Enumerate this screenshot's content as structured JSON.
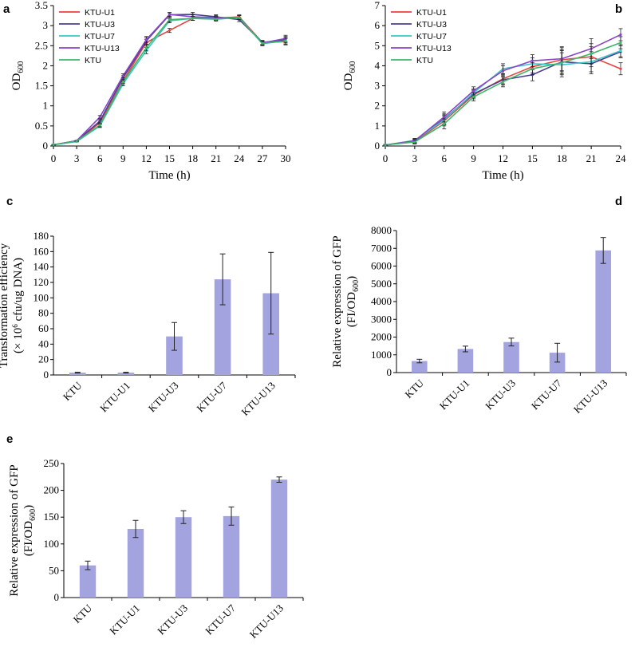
{
  "colors": {
    "KTU-U1": "#e8423f",
    "KTU-U3": "#4a3f8f",
    "KTU-U7": "#3cc6c4",
    "KTU-U13": "#8a43c6",
    "KTU": "#3fb56a",
    "bar": "#a3a3e0",
    "error": "#222222"
  },
  "chart_data": [
    {
      "panel": "a",
      "type": "line",
      "x": [
        0,
        3,
        6,
        9,
        12,
        15,
        18,
        21,
        24,
        27,
        30
      ],
      "xticks": [
        "0",
        "3",
        "6",
        "9",
        "12",
        "15",
        "18",
        "21",
        "24",
        "27",
        "30"
      ],
      "yticks": [
        "0",
        "0.5",
        "1",
        "1.5",
        "2",
        "2.5",
        "3",
        "3.5"
      ],
      "xlabel": "Time (h)",
      "ylabel_main": "OD",
      "ylabel_sub": "600",
      "xlim": [
        0,
        30
      ],
      "ylim": [
        0,
        3.5
      ],
      "legend": "top-left",
      "series": [
        {
          "name": "KTU-U1",
          "values": [
            0.03,
            0.12,
            0.58,
            1.62,
            2.58,
            2.88,
            3.18,
            3.18,
            3.22,
            2.58,
            2.6
          ],
          "errors": [
            0.01,
            0.01,
            0.04,
            0.05,
            0.08,
            0.05,
            0.05,
            0.05,
            0.05,
            0.05,
            0.08
          ]
        },
        {
          "name": "KTU-U3",
          "values": [
            0.03,
            0.13,
            0.62,
            1.7,
            2.62,
            3.27,
            3.28,
            3.22,
            3.15,
            2.58,
            2.65
          ],
          "errors": [
            0.01,
            0.01,
            0.04,
            0.05,
            0.08,
            0.05,
            0.05,
            0.05,
            0.05,
            0.05,
            0.08
          ]
        },
        {
          "name": "KTU-U7",
          "values": [
            0.03,
            0.11,
            0.5,
            1.55,
            2.38,
            3.12,
            3.18,
            3.18,
            3.2,
            2.55,
            2.62
          ],
          "errors": [
            0.01,
            0.01,
            0.04,
            0.05,
            0.08,
            0.05,
            0.05,
            0.05,
            0.05,
            0.05,
            0.08
          ]
        },
        {
          "name": "KTU-U13",
          "values": [
            0.03,
            0.13,
            0.72,
            1.75,
            2.65,
            3.28,
            3.22,
            3.2,
            3.2,
            2.57,
            2.68
          ],
          "errors": [
            0.01,
            0.01,
            0.04,
            0.05,
            0.08,
            0.05,
            0.05,
            0.05,
            0.05,
            0.05,
            0.08
          ]
        },
        {
          "name": "KTU",
          "values": [
            0.03,
            0.12,
            0.52,
            1.6,
            2.45,
            3.15,
            3.18,
            3.16,
            3.2,
            2.56,
            2.62
          ],
          "errors": [
            0.01,
            0.01,
            0.04,
            0.05,
            0.08,
            0.05,
            0.05,
            0.05,
            0.05,
            0.05,
            0.08
          ]
        }
      ]
    },
    {
      "panel": "b",
      "type": "line",
      "x": [
        0,
        3,
        6,
        9,
        12,
        15,
        18,
        21,
        24
      ],
      "xticks": [
        "0",
        "3",
        "6",
        "9",
        "12",
        "15",
        "18",
        "21",
        "24"
      ],
      "yticks": [
        "0",
        "1",
        "2",
        "3",
        "4",
        "5",
        "6",
        "7"
      ],
      "xlabel": "Time (h)",
      "ylabel_main": "OD",
      "ylabel_sub": "600",
      "xlim": [
        0,
        24
      ],
      "ylim": [
        0,
        7
      ],
      "legend": "top-left",
      "series": [
        {
          "name": "KTU-U1",
          "values": [
            0.05,
            0.22,
            1.25,
            2.55,
            3.35,
            3.95,
            4.3,
            4.45,
            3.85
          ],
          "errors": [
            0.02,
            0.1,
            0.25,
            0.2,
            0.25,
            0.3,
            0.6,
            0.5,
            0.3
          ]
        },
        {
          "name": "KTU-U3",
          "values": [
            0.05,
            0.25,
            1.35,
            2.6,
            3.3,
            3.55,
            4.2,
            4.1,
            4.7
          ],
          "errors": [
            0.02,
            0.1,
            0.25,
            0.2,
            0.25,
            0.3,
            0.6,
            0.5,
            0.3
          ]
        },
        {
          "name": "KTU-U7",
          "values": [
            0.05,
            0.28,
            1.3,
            2.65,
            3.85,
            4.1,
            4.05,
            4.2,
            4.75
          ],
          "errors": [
            0.02,
            0.1,
            0.25,
            0.2,
            0.25,
            0.3,
            0.6,
            0.5,
            0.3
          ]
        },
        {
          "name": "KTU-U13",
          "values": [
            0.05,
            0.26,
            1.45,
            2.75,
            3.75,
            4.25,
            4.35,
            4.85,
            5.55
          ],
          "errors": [
            0.02,
            0.1,
            0.25,
            0.2,
            0.25,
            0.3,
            0.6,
            0.5,
            0.3
          ]
        },
        {
          "name": "KTU",
          "values": [
            0.05,
            0.2,
            1.1,
            2.45,
            3.2,
            3.85,
            4.15,
            4.6,
            5.15
          ],
          "errors": [
            0.02,
            0.1,
            0.25,
            0.2,
            0.25,
            0.3,
            0.6,
            0.5,
            0.3
          ]
        }
      ]
    },
    {
      "panel": "c",
      "type": "bar",
      "categories": [
        "KTU",
        "KTU-U1",
        "KTU-U3",
        "KTU-U7",
        "KTU-U13"
      ],
      "values": [
        3,
        3,
        50,
        124,
        106
      ],
      "errors": [
        0.5,
        0.5,
        18,
        33,
        53
      ],
      "yticks": [
        "0",
        "20",
        "40",
        "60",
        "80",
        "100",
        "120",
        "140",
        "160",
        "180"
      ],
      "ylim": [
        0,
        180
      ],
      "ylabel_line1": "Transformation efficiency",
      "ylabel_line2_pre": "(× 10",
      "ylabel_line2_sup": "6",
      "ylabel_line2_post": " cfu/ug DNA)"
    },
    {
      "panel": "d",
      "type": "bar",
      "categories": [
        "KTU",
        "KTU-U1",
        "KTU-U3",
        "KTU-U7",
        "KTU-U13"
      ],
      "values": [
        650,
        1330,
        1720,
        1120,
        6880
      ],
      "errors": [
        100,
        160,
        220,
        530,
        730
      ],
      "yticks": [
        "0",
        "1000",
        "2000",
        "3000",
        "4000",
        "5000",
        "6000",
        "7000",
        "8000"
      ],
      "ylim": [
        0,
        8000
      ],
      "ylabel_line1": "Relative expression of GFP",
      "ylabel_line2_pre": "(FI/OD",
      "ylabel_line2_sub": "600",
      "ylabel_line2_post": ")"
    },
    {
      "panel": "e",
      "type": "bar",
      "categories": [
        "KTU",
        "KTU-U1",
        "KTU-U3",
        "KTU-U7",
        "KTU-U13"
      ],
      "values": [
        60,
        128,
        150,
        152,
        220
      ],
      "errors": [
        8,
        16,
        12,
        17,
        5
      ],
      "yticks": [
        "0",
        "50",
        "100",
        "150",
        "200",
        "250"
      ],
      "ylim": [
        0,
        250
      ],
      "ylabel_line1": "Relative expression of GFP",
      "ylabel_line2_pre": "(FI/OD",
      "ylabel_line2_sub": "600",
      "ylabel_line2_post": ")"
    }
  ]
}
